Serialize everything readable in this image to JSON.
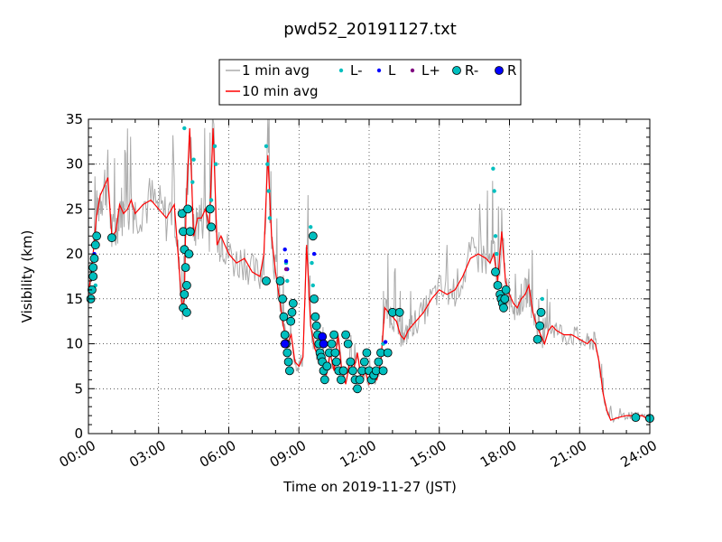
{
  "chart_data": {
    "type": "line",
    "title": "pwd52_20191127.txt",
    "xlabel": "Time on 2019-11-27 (JST)",
    "ylabel": "Visibility (km)",
    "xlim": [
      0,
      24
    ],
    "ylim": [
      0,
      35
    ],
    "x_tick_labels": [
      "00:00",
      "03:00",
      "06:00",
      "09:00",
      "12:00",
      "15:00",
      "18:00",
      "21:00",
      "24:00"
    ],
    "y_tick_labels": [
      "0",
      "5",
      "10",
      "15",
      "20",
      "25",
      "30",
      "35"
    ],
    "grid": true,
    "legend_position": "top-center",
    "legend": [
      {
        "label": "1 min avg",
        "kind": "line",
        "color": "#aaaaaa"
      },
      {
        "label": "10 min avg",
        "kind": "line",
        "color": "#ff0000"
      },
      {
        "label": "L-",
        "kind": "dot",
        "color": "#00bfbf"
      },
      {
        "label": "L",
        "kind": "dot",
        "color": "#0000ff"
      },
      {
        "label": "L+",
        "kind": "dot",
        "color": "#800080"
      },
      {
        "label": "R-",
        "kind": "circle",
        "color": "#00bfbf"
      },
      {
        "label": "R",
        "kind": "circle",
        "color": "#0000ff"
      }
    ],
    "series": [
      {
        "name": "10 min avg",
        "color": "#ff0000",
        "x": [
          0.0,
          0.17,
          0.33,
          0.5,
          0.67,
          0.83,
          1.0,
          1.17,
          1.33,
          1.5,
          1.67,
          1.83,
          2.0,
          2.33,
          2.67,
          3.0,
          3.33,
          3.67,
          3.83,
          4.0,
          4.1,
          4.17,
          4.33,
          4.5,
          4.67,
          4.83,
          5.0,
          5.17,
          5.33,
          5.5,
          5.67,
          5.83,
          6.0,
          6.33,
          6.67,
          7.0,
          7.33,
          7.5,
          7.67,
          7.83,
          8.0,
          8.17,
          8.33,
          8.5,
          8.67,
          8.83,
          9.0,
          9.17,
          9.33,
          9.5,
          9.67,
          9.83,
          10.0,
          10.17,
          10.33,
          10.5,
          10.67,
          10.83,
          11.0,
          11.17,
          11.33,
          11.5,
          11.67,
          11.83,
          12.0,
          12.17,
          12.33,
          12.5,
          12.67,
          12.83,
          13.0,
          13.17,
          13.33,
          13.5,
          13.67,
          13.83,
          14.0,
          14.33,
          14.67,
          15.0,
          15.33,
          15.67,
          16.0,
          16.33,
          16.67,
          17.0,
          17.17,
          17.33,
          17.5,
          17.67,
          17.83,
          18.0,
          18.17,
          18.33,
          18.5,
          18.67,
          18.83,
          19.0,
          19.17,
          19.33,
          19.5,
          19.67,
          19.83,
          20.0,
          20.33,
          20.67,
          21.0,
          21.33,
          21.5,
          21.67,
          21.83,
          22.0,
          22.17,
          22.33,
          22.67,
          23.0,
          23.33,
          23.67,
          24.0
        ],
        "y": [
          15.5,
          19.0,
          24.0,
          26.5,
          27.5,
          28.5,
          22.0,
          22.5,
          25.5,
          24.5,
          25.0,
          26.0,
          24.5,
          25.5,
          26.0,
          25.0,
          24.0,
          25.5,
          20.0,
          14.0,
          15.0,
          25.0,
          34.0,
          22.0,
          24.0,
          24.0,
          25.0,
          23.0,
          34.0,
          21.0,
          22.0,
          21.0,
          20.0,
          19.0,
          19.5,
          18.0,
          17.5,
          20.0,
          31.0,
          22.0,
          18.0,
          15.0,
          12.0,
          10.0,
          11.0,
          8.0,
          7.5,
          8.5,
          21.0,
          12.0,
          9.5,
          8.5,
          9.0,
          6.5,
          9.0,
          7.0,
          11.0,
          7.0,
          5.5,
          8.0,
          7.0,
          9.0,
          6.0,
          7.0,
          5.5,
          6.5,
          6.0,
          8.0,
          14.0,
          13.5,
          13.0,
          12.5,
          11.0,
          10.5,
          11.5,
          12.0,
          12.5,
          13.5,
          15.0,
          16.0,
          15.5,
          16.0,
          17.5,
          19.5,
          20.0,
          19.5,
          19.0,
          20.0,
          17.0,
          22.5,
          17.0,
          15.5,
          14.5,
          14.0,
          15.0,
          15.5,
          16.5,
          13.5,
          12.0,
          11.0,
          10.0,
          11.5,
          12.0,
          11.5,
          11.0,
          11.0,
          10.5,
          10.0,
          10.5,
          10.0,
          8.0,
          4.5,
          2.5,
          1.5,
          1.8,
          2.0,
          2.0,
          2.0,
          1.5
        ]
      },
      {
        "name": "L-",
        "color": "#00bfbf",
        "x": [
          0.2,
          0.3,
          4.1,
          4.5,
          4.45,
          5.4,
          5.45,
          5.25,
          7.6,
          7.65,
          7.7,
          7.75,
          8.45,
          8.5,
          9.5,
          9.55,
          9.6,
          12.6,
          17.3,
          17.35,
          17.4,
          17.45,
          19.4,
          19.45
        ],
        "y": [
          18.5,
          16.5,
          34.0,
          30.5,
          28.0,
          32.0,
          30.0,
          26.0,
          32.0,
          30.0,
          27.0,
          24.0,
          19.0,
          17.0,
          23.0,
          19.0,
          16.5,
          10.0,
          29.5,
          27.0,
          22.0,
          20.0,
          15.0,
          13.5
        ]
      },
      {
        "name": "L",
        "color": "#0000ff",
        "x": [
          0.3,
          0.25,
          8.4,
          8.45,
          8.5,
          9.55,
          9.65,
          12.7
        ],
        "y": [
          21.8,
          20.0,
          20.5,
          19.2,
          18.3,
          21.9,
          20.0,
          10.2
        ]
      },
      {
        "name": "L+",
        "color": "#800080",
        "x": [
          8.45
        ],
        "y": [
          18.3
        ]
      },
      {
        "name": "R-",
        "color": "#00bfbf",
        "x": [
          0.1,
          0.15,
          0.2,
          0.2,
          0.25,
          0.3,
          0.35,
          1.0,
          4.0,
          4.05,
          4.1,
          4.15,
          4.2,
          4.1,
          4.05,
          4.2,
          4.3,
          4.35,
          4.25,
          5.2,
          5.25,
          7.6,
          8.2,
          8.3,
          8.35,
          8.4,
          8.45,
          8.5,
          8.55,
          8.6,
          8.65,
          8.7,
          8.75,
          9.6,
          9.65,
          9.7,
          9.75,
          9.8,
          9.85,
          9.9,
          9.95,
          10.0,
          10.05,
          10.1,
          10.2,
          10.3,
          10.4,
          10.5,
          10.55,
          10.6,
          10.7,
          10.8,
          10.9,
          11.0,
          11.1,
          11.2,
          11.3,
          11.4,
          11.5,
          11.6,
          11.7,
          11.8,
          11.9,
          12.0,
          12.1,
          12.2,
          12.3,
          12.4,
          12.5,
          12.6,
          12.8,
          13.0,
          13.3,
          17.4,
          17.5,
          17.6,
          17.65,
          17.7,
          17.75,
          17.8,
          17.85,
          19.2,
          19.3,
          19.35,
          23.4,
          24.0
        ],
        "y": [
          15.0,
          16.0,
          17.5,
          18.5,
          19.5,
          21.0,
          22.0,
          21.8,
          24.5,
          22.5,
          20.5,
          18.5,
          16.5,
          15.5,
          14.0,
          13.5,
          20.0,
          22.5,
          25.0,
          25.0,
          23.0,
          17.0,
          17.0,
          15.0,
          13.0,
          11.0,
          10.0,
          9.0,
          8.0,
          7.0,
          12.5,
          13.5,
          14.5,
          22.0,
          15.0,
          13.0,
          12.0,
          11.0,
          10.0,
          9.0,
          8.5,
          8.0,
          7.0,
          6.0,
          7.5,
          9.0,
          10.0,
          11.0,
          9.0,
          8.0,
          7.0,
          6.0,
          7.0,
          11.0,
          10.0,
          8.0,
          7.0,
          6.0,
          5.0,
          6.0,
          7.0,
          8.0,
          9.0,
          7.0,
          6.0,
          6.5,
          7.0,
          8.0,
          9.0,
          7.0,
          9.0,
          13.5,
          13.5,
          18.0,
          16.5,
          15.5,
          15.0,
          14.5,
          14.0,
          15.0,
          16.0,
          10.5,
          12.0,
          13.5,
          1.8,
          1.7
        ]
      },
      {
        "name": "R",
        "color": "#0000ff",
        "x": [
          8.4,
          10.0,
          10.05
        ],
        "y": [
          10.0,
          10.8,
          10.0
        ]
      }
    ]
  }
}
